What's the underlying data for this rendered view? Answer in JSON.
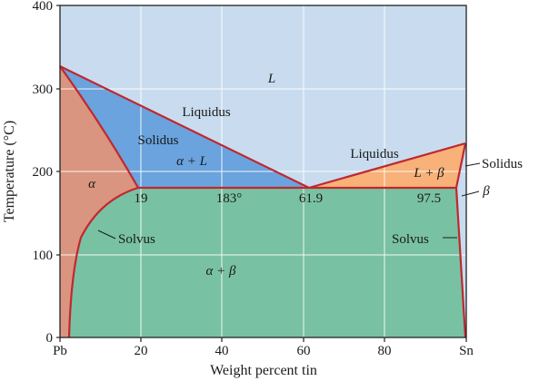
{
  "diagram": {
    "x_axis": {
      "title": "Weight percent tin",
      "ticks": [
        {
          "value": 0,
          "label": "Pb"
        },
        {
          "value": 20,
          "label": "20"
        },
        {
          "value": 40,
          "label": "40"
        },
        {
          "value": 60,
          "label": "60"
        },
        {
          "value": 80,
          "label": "80"
        },
        {
          "value": 100,
          "label": "Sn"
        }
      ],
      "range": [
        0,
        100
      ]
    },
    "y_axis": {
      "title": "Temperature (°C)",
      "ticks": [
        {
          "value": 0,
          "label": "0"
        },
        {
          "value": 100,
          "label": "100"
        },
        {
          "value": 200,
          "label": "200"
        },
        {
          "value": 300,
          "label": "300"
        },
        {
          "value": 400,
          "label": "400"
        }
      ],
      "range": [
        0,
        400
      ]
    },
    "key_points": {
      "pb_melting": {
        "wt": 0,
        "T": 327
      },
      "sn_melting": {
        "wt": 100,
        "T": 232
      },
      "alpha_solubility_limit": {
        "wt": 19,
        "T": 183
      },
      "eutectic": {
        "wt": 61.9,
        "T": 183
      },
      "beta_solubility_limit": {
        "wt": 97.5,
        "T": 183
      }
    },
    "region_labels": {
      "liquid": "L",
      "alpha": "α",
      "beta": "β",
      "alpha_plus_liquid": "α + L",
      "liquid_plus_beta": "L + β",
      "alpha_plus_beta": "α + β"
    },
    "line_labels": {
      "liquidus_left": "Liquidus",
      "liquidus_right": "Liquidus",
      "solidus_left": "Solidus",
      "solidus_right": "Solidus",
      "solvus_left": "Solvus",
      "solvus_right": "Solvus"
    },
    "point_labels": {
      "alpha_limit": "19",
      "eutectic_temp": "183°",
      "eutectic_comp": "61.9",
      "beta_limit": "97.5"
    },
    "colors": {
      "liquid": "#c9dcef",
      "alpha": "#d9957f",
      "alpha_plus_liquid": "#6aa3dd",
      "liquid_plus_beta": "#f7b179",
      "alpha_plus_beta": "#79c1a3",
      "boundary": "#c0282e",
      "grid": "#ffffff"
    }
  }
}
